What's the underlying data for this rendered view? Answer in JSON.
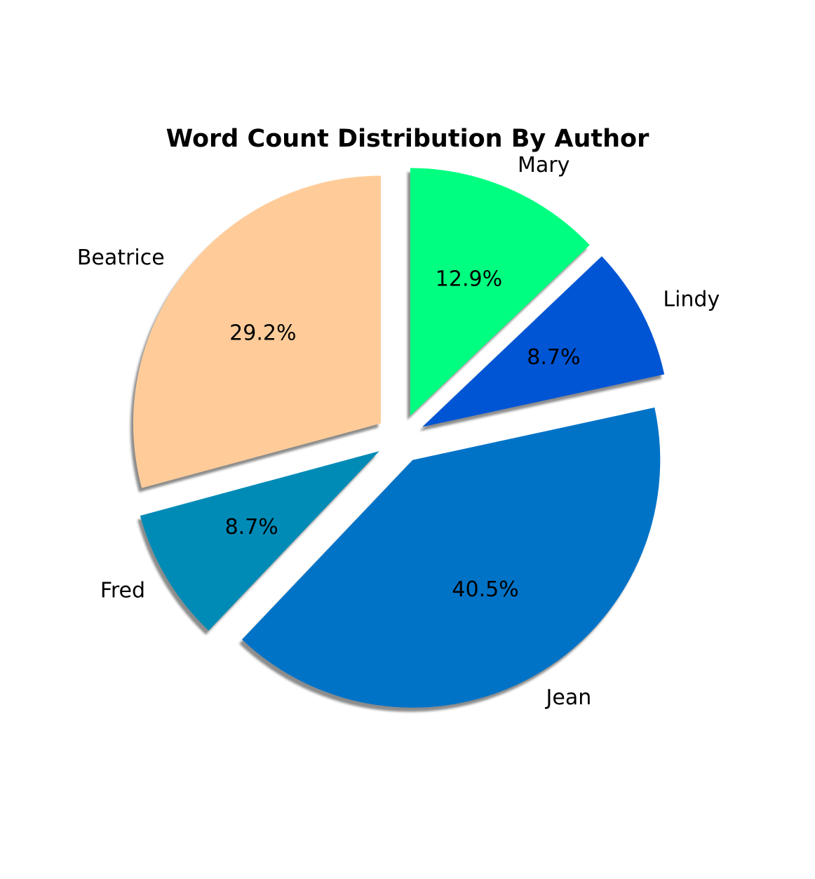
{
  "chart_data": {
    "type": "pie",
    "title": "Word Count Distribution By Author",
    "start_angle_deg": 90,
    "direction": "counterclockwise",
    "shadow": true,
    "slices": [
      {
        "label": "Beatrice",
        "value": 29.2,
        "pct_label": "29.2%",
        "color": "#ffcc99",
        "exploded": true
      },
      {
        "label": "Fred",
        "value": 8.7,
        "pct_label": "8.7%",
        "color": "#008bb7",
        "exploded": true
      },
      {
        "label": "Jean",
        "value": 40.5,
        "pct_label": "40.5%",
        "color": "#0073c7",
        "exploded": true
      },
      {
        "label": "Lindy",
        "value": 8.7,
        "pct_label": "8.7%",
        "color": "#0055d4",
        "exploded": true
      },
      {
        "label": "Mary",
        "value": 12.9,
        "pct_label": "12.9%",
        "color": "#00ff80",
        "exploded": true
      }
    ]
  }
}
